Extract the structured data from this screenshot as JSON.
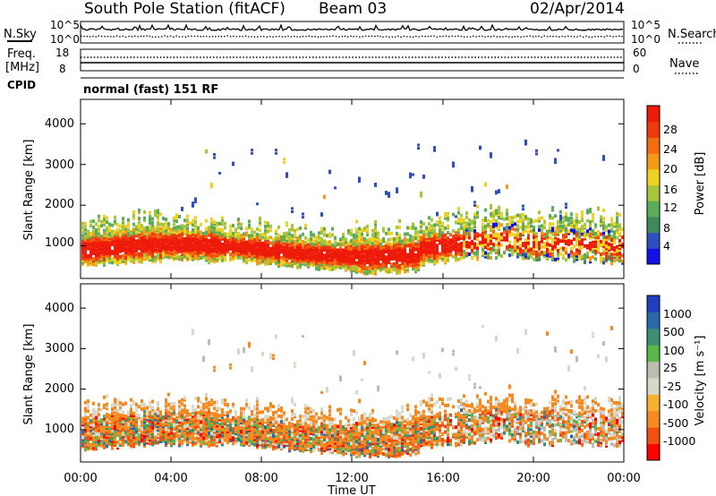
{
  "header": {
    "station": "South Pole Station (fitACF)",
    "beam": "Beam 03",
    "date": "02/Apr/2014"
  },
  "noise_panel": {
    "left_label": "N.Sky",
    "right_label": "N.Search",
    "y_ticks_left": [
      "10^5",
      "10^0"
    ],
    "y_ticks_right": [
      "10^5",
      "10^0"
    ]
  },
  "freq_panel": {
    "left_label_1": "Freq.",
    "left_label_2": "[MHz]",
    "right_label": "Nave",
    "y_ticks_left": [
      "18",
      "8"
    ],
    "y_ticks_right": [
      "60",
      "0"
    ]
  },
  "cpid": {
    "label": "CPID",
    "value": "normal (fast) 151 RF"
  },
  "x_axis": {
    "label": "Time UT",
    "ticks": [
      "00:00",
      "04:00",
      "08:00",
      "12:00",
      "16:00",
      "20:00",
      "00:00"
    ]
  },
  "colors": {
    "power_scale": [
      "#1010e8",
      "#2e4fbf",
      "#3f8a5a",
      "#5aad5a",
      "#a7c43a",
      "#f0d020",
      "#f59a16",
      "#f46c10",
      "#f03a0c",
      "#ee1a0a"
    ],
    "velocity_scale": [
      "#ff0000",
      "#f05010",
      "#f58a20",
      "#f8b030",
      "#d8d8c8",
      "#bcbcb0",
      "#58b848",
      "#3b8f72",
      "#2b6aa6",
      "#1f3fc0"
    ]
  },
  "chart_data": [
    {
      "type": "heatmap",
      "panel": "power",
      "ylabel": "Slant Range [km]",
      "xlabel": "Time UT",
      "x_ticks": [
        "00:00",
        "04:00",
        "08:00",
        "12:00",
        "16:00",
        "20:00",
        "00:00"
      ],
      "y_ticks": [
        1000,
        2000,
        3000,
        4000
      ],
      "ylim": [
        200,
        4600
      ],
      "colorbar": {
        "label": "Power [dB]",
        "ticks": [
          "4",
          "8",
          "12",
          "16",
          "20",
          "24",
          "28"
        ],
        "range": [
          0,
          30
        ]
      }
    },
    {
      "type": "heatmap",
      "panel": "velocity",
      "ylabel": "Slant Range [km]",
      "xlabel": "Time UT",
      "x_ticks": [
        "00:00",
        "04:00",
        "08:00",
        "12:00",
        "16:00",
        "20:00",
        "00:00"
      ],
      "y_ticks": [
        1000,
        2000,
        3000,
        4000
      ],
      "ylim": [
        200,
        4600
      ],
      "colorbar": {
        "label": "Velocity [m s⁻¹]",
        "ticks": [
          "1000",
          "500",
          "100",
          "25",
          "-25",
          "-100",
          "-500",
          "-1000"
        ]
      }
    }
  ]
}
